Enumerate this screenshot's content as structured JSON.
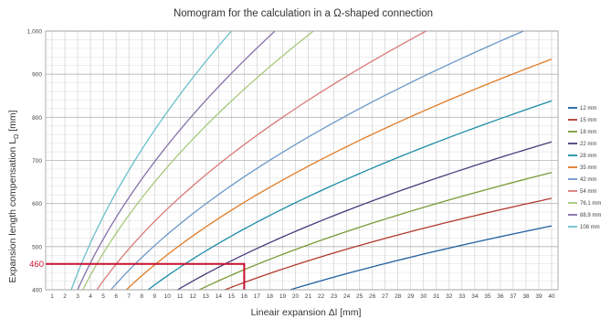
{
  "chart_data": {
    "type": "line",
    "title": "Nomogram for the calculation in a Ω-shaped connection",
    "xlabel": "Lineair expansion Δl [mm]",
    "ylabel_main": "Expansion length compensation L",
    "ylabel_sub": "Ω",
    "ylabel_unit": " [mm]",
    "xlim": [
      0.5,
      40.5
    ],
    "ylim": [
      400,
      1000
    ],
    "x_ticks": [
      1,
      2,
      3,
      4,
      5,
      6,
      7,
      8,
      9,
      10,
      11,
      12,
      13,
      14,
      15,
      16,
      17,
      18,
      19,
      20,
      21,
      22,
      23,
      24,
      25,
      26,
      27,
      28,
      29,
      30,
      31,
      32,
      33,
      34,
      35,
      36,
      37,
      38,
      39,
      40
    ],
    "y_ticks": [
      {
        "value": 400,
        "label": "400"
      },
      {
        "value": 500,
        "label": "500"
      },
      {
        "value": 600,
        "label": "600"
      },
      {
        "value": 700,
        "label": "700"
      },
      {
        "value": 800,
        "label": "800"
      },
      {
        "value": 900,
        "label": "900"
      },
      {
        "value": 1000,
        "label": "1.000"
      }
    ],
    "grid": true,
    "legend_position": "right",
    "series": [
      {
        "name": "12 mm",
        "color": "#1f5fa0",
        "x": [
          19.6,
          40
        ],
        "y": [
          400,
          548
        ]
      },
      {
        "name": "15 mm",
        "color": "#b03a2e",
        "x": [
          14.5,
          40
        ],
        "y": [
          400,
          612
        ]
      },
      {
        "name": "18 mm",
        "color": "#7a9a35",
        "x": [
          12.5,
          40
        ],
        "y": [
          400,
          672
        ]
      },
      {
        "name": "22 mm",
        "color": "#4a3a7a",
        "x": [
          10.8,
          40
        ],
        "y": [
          400,
          743
        ]
      },
      {
        "name": "28 mm",
        "color": "#1a8ca8",
        "x": [
          8.5,
          40
        ],
        "y": [
          400,
          838
        ]
      },
      {
        "name": "35 mm",
        "color": "#e07b25",
        "x": [
          6.8,
          40
        ],
        "y": [
          400,
          935
        ]
      },
      {
        "name": "42 mm",
        "color": "#6a98c8",
        "x": [
          5.6,
          37.8
        ],
        "y": [
          400,
          1000
        ]
      },
      {
        "name": "54 mm",
        "color": "#d97a78",
        "x": [
          4.5,
          30.2
        ],
        "y": [
          400,
          1000
        ]
      },
      {
        "name": "76,1 mm",
        "color": "#a8c87a",
        "x": [
          3.4,
          21.4
        ],
        "y": [
          400,
          1000
        ]
      },
      {
        "name": "88,9 mm",
        "color": "#8470a8",
        "x": [
          3.0,
          18.4
        ],
        "y": [
          400,
          1000
        ]
      },
      {
        "name": "108 mm",
        "color": "#6ac0cc",
        "x": [
          2.5,
          15.0
        ],
        "y": [
          400,
          1000
        ]
      }
    ],
    "marker": {
      "x": 16,
      "y": 460,
      "label": "460",
      "color": "#c8102e"
    }
  }
}
